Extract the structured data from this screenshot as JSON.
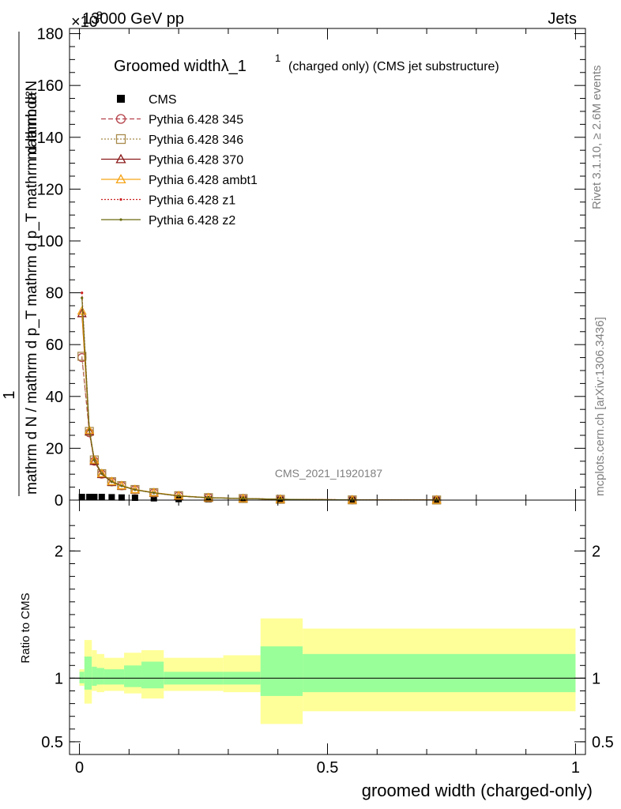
{
  "header": {
    "left": "13000 GeV pp",
    "right": "Jets",
    "exponent": "×10",
    "exponent_power": "3"
  },
  "side": {
    "rivet": "Rivet 3.1.10, ≥ 2.6M events",
    "mcplots": "mcplots.cern.ch [arXiv:1306.3436]"
  },
  "watermark": "CMS_2021_I1920187",
  "colors": {
    "cms": "#000000",
    "p345": "#b5424a",
    "p346": "#a88a4b",
    "p370": "#8b1a1a",
    "ambt1": "#f5a316",
    "z1": "#cc2020",
    "z2": "#6b6b10",
    "band_inner": "#99ff99",
    "band_outer": "#ffff99"
  },
  "chart_data": [
    {
      "type": "line",
      "title": "Groomed widthλ_1",
      "title_sup": "1",
      "subtitle": "(charged only) (CMS jet substructure)",
      "ylabel_num": "1",
      "ylabel_den": "mathrm d N / mathrm d p_T mathrm d p_T mathrm d lambda",
      "ylabel_top": "mathrm d²N",
      "ylim": [
        0,
        182
      ],
      "yticks": [
        "0",
        "20",
        "40",
        "60",
        "80",
        "100",
        "120",
        "140",
        "160",
        "180"
      ],
      "legend_position": "top-left",
      "x": [
        0.005,
        0.02,
        0.03,
        0.045,
        0.065,
        0.085,
        0.112,
        0.15,
        0.2,
        0.26,
        0.33,
        0.405,
        0.55,
        0.72
      ],
      "series": [
        {
          "name": "CMS",
          "values": [
            1.2,
            1.2,
            1.2,
            1.2,
            1.1,
            1.0,
            0.9,
            0.7,
            0.4,
            0.3,
            0.2,
            0.1,
            0.05,
            0.02
          ]
        },
        {
          "name": "Pythia 6.428 345",
          "values": [
            55,
            26,
            15,
            10,
            7,
            5.5,
            4,
            2.8,
            1.6,
            0.9,
            0.6,
            0.3,
            0.08,
            0.04
          ]
        },
        {
          "name": "Pythia 6.428 346",
          "values": [
            55.5,
            26.5,
            15.5,
            10.2,
            7.1,
            5.6,
            4.1,
            2.9,
            1.7,
            0.95,
            0.6,
            0.3,
            0.08,
            0.04
          ]
        },
        {
          "name": "Pythia 6.428 370",
          "values": [
            72,
            26.5,
            15,
            10,
            7,
            5.5,
            4,
            2.8,
            1.6,
            0.9,
            0.6,
            0.3,
            0.08,
            0.04
          ]
        },
        {
          "name": "Pythia 6.428 ambt1",
          "values": [
            73,
            27,
            15.5,
            10.3,
            7.2,
            5.6,
            4.1,
            2.9,
            1.7,
            0.95,
            0.6,
            0.3,
            0.08,
            0.04
          ]
        },
        {
          "name": "Pythia 6.428 z1",
          "values": [
            80,
            27,
            15.5,
            10.2,
            7.1,
            5.5,
            4,
            2.8,
            1.6,
            0.9,
            0.6,
            0.3,
            0.08,
            0.04
          ]
        },
        {
          "name": "Pythia 6.428 z2",
          "values": [
            78,
            27,
            15.5,
            10.2,
            7.1,
            5.5,
            4,
            2.8,
            1.6,
            0.9,
            0.6,
            0.3,
            0.08,
            0.04
          ]
        }
      ]
    },
    {
      "type": "area",
      "ylabel": "Ratio to CMS",
      "xlabel": "groomed width (charged-only)",
      "xlim": [
        -0.02,
        1.02
      ],
      "xticks": [
        "0",
        "0.5",
        "1"
      ],
      "ylim": [
        0.4,
        2.4
      ],
      "yticks": [
        "0.5",
        "1",
        "2"
      ],
      "bins": [
        {
          "lo": 0.0,
          "hi": 0.01,
          "inner": [
            0.96,
            1.05
          ],
          "outer": [
            0.94,
            1.07
          ]
        },
        {
          "lo": 0.01,
          "hi": 0.025,
          "inner": [
            0.91,
            1.17
          ],
          "outer": [
            0.8,
            1.3
          ]
        },
        {
          "lo": 0.025,
          "hi": 0.035,
          "inner": [
            0.94,
            1.09
          ],
          "outer": [
            0.9,
            1.22
          ]
        },
        {
          "lo": 0.035,
          "hi": 0.05,
          "inner": [
            0.95,
            1.08
          ],
          "outer": [
            0.89,
            1.19
          ]
        },
        {
          "lo": 0.05,
          "hi": 0.09,
          "inner": [
            0.95,
            1.07
          ],
          "outer": [
            0.9,
            1.16
          ]
        },
        {
          "lo": 0.09,
          "hi": 0.125,
          "inner": [
            0.93,
            1.1
          ],
          "outer": [
            0.88,
            1.2
          ]
        },
        {
          "lo": 0.125,
          "hi": 0.17,
          "inner": [
            0.92,
            1.13
          ],
          "outer": [
            0.84,
            1.22
          ]
        },
        {
          "lo": 0.17,
          "hi": 0.29,
          "inner": [
            0.95,
            1.05
          ],
          "outer": [
            0.9,
            1.16
          ]
        },
        {
          "lo": 0.29,
          "hi": 0.365,
          "inner": [
            0.95,
            1.05
          ],
          "outer": [
            0.89,
            1.18
          ]
        },
        {
          "lo": 0.365,
          "hi": 0.45,
          "inner": [
            0.86,
            1.25
          ],
          "outer": [
            0.64,
            1.47
          ]
        },
        {
          "lo": 0.45,
          "hi": 1.0,
          "inner": [
            0.89,
            1.19
          ],
          "outer": [
            0.74,
            1.39
          ]
        }
      ]
    }
  ]
}
